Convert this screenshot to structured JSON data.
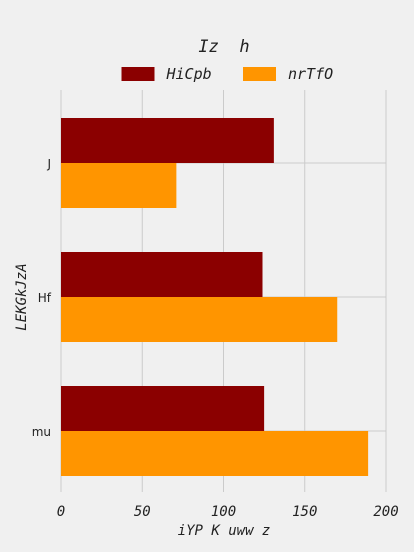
{
  "chart_data": {
    "type": "bar",
    "orientation": "horizontal",
    "title": "Iz  h",
    "xlabel": "iYP K uww z",
    "ylabel": "LEKGkJzA",
    "categories": [
      "J",
      "Hf",
      "mu"
    ],
    "series": [
      {
        "name": "HiCpb",
        "values": [
          131,
          124,
          125
        ],
        "color": "#8b0000"
      },
      {
        "name": "nrTfO",
        "values": [
          71,
          170,
          189
        ],
        "color": "#ff9500"
      }
    ],
    "xlim": [
      0,
      200
    ],
    "xticks": [
      0,
      50,
      100,
      150,
      200
    ],
    "grid": true,
    "legend_position": "top-center"
  },
  "colors": {
    "background": "#f0f0f0",
    "grid": "#cbcbcb",
    "text": "#222222"
  }
}
